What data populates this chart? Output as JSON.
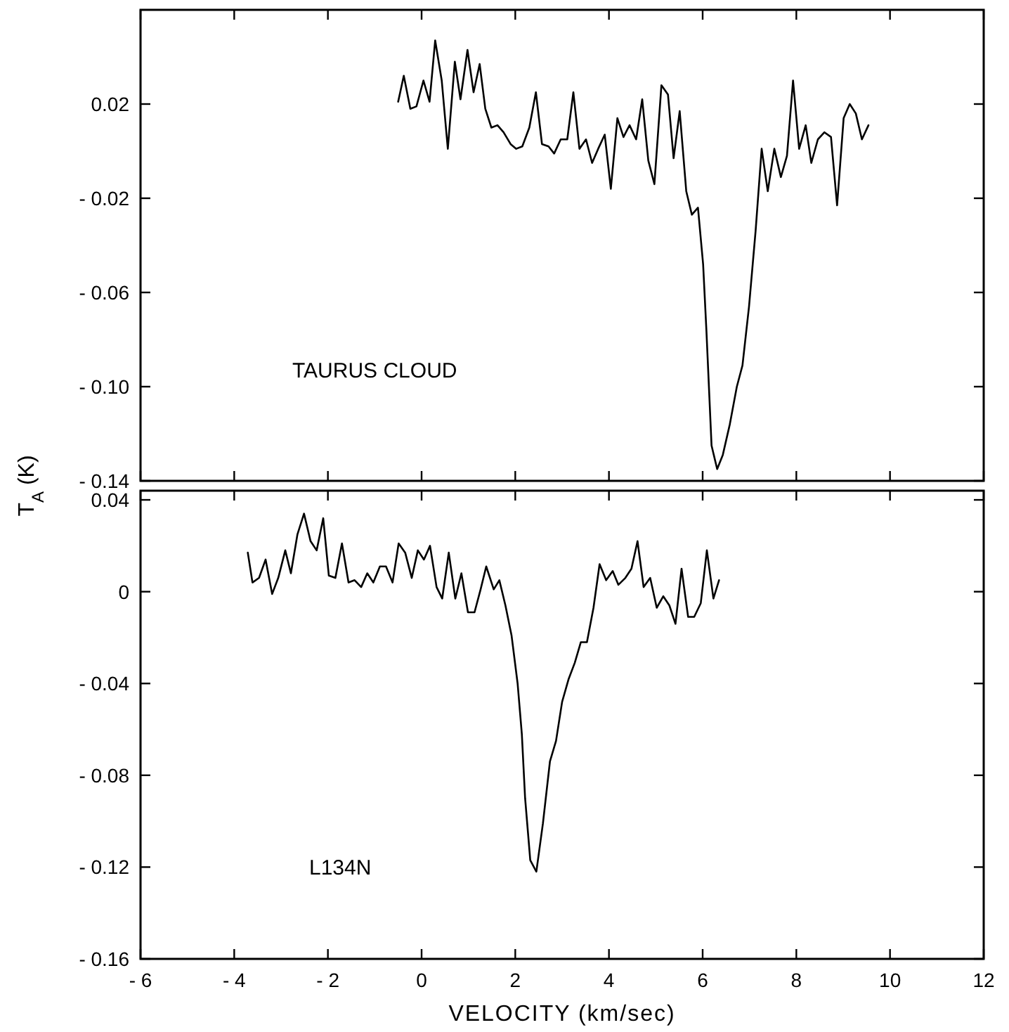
{
  "chart_data": [
    {
      "type": "line",
      "ylabel": "T$_{A}$ (K)",
      "annotations": [
        "TAURUS CLOUD"
      ],
      "tick_labels": "y",
      "grid": false,
      "marker": "none",
      "line_style": "solid",
      "color": "#000000",
      "xlim": [
        -6,
        12
      ],
      "xticks": [
        {
          "value": -6,
          "label": null
        },
        {
          "value": -4,
          "label": null
        },
        {
          "value": -2,
          "label": null
        },
        {
          "value": 0,
          "label": null
        },
        {
          "value": 2,
          "label": null
        },
        {
          "value": 4,
          "label": null
        },
        {
          "value": 6,
          "label": null
        },
        {
          "value": 8,
          "label": null
        },
        {
          "value": 10,
          "label": null
        },
        {
          "value": 12,
          "label": null
        }
      ],
      "ylim": [
        -0.14,
        0.06
      ],
      "yticks": [
        {
          "value": 0.02,
          "label": "0.02"
        },
        {
          "value": -0.02,
          "label": "- 0.02"
        },
        {
          "value": -0.06,
          "label": "- 0.06"
        },
        {
          "value": -0.1,
          "label": "- 0.10"
        },
        {
          "value": -0.14,
          "label": "- 0.14"
        }
      ],
      "x": [
        -0.5,
        -0.38,
        -0.24,
        -0.11,
        0.04,
        0.17,
        0.29,
        0.43,
        0.56,
        0.71,
        0.83,
        0.98,
        1.11,
        1.24,
        1.36,
        1.49,
        1.62,
        1.75,
        1.9,
        2.02,
        2.15,
        2.3,
        2.44,
        2.57,
        2.71,
        2.83,
        2.97,
        3.11,
        3.24,
        3.37,
        3.51,
        3.64,
        3.77,
        3.91,
        4.04,
        4.18,
        4.31,
        4.44,
        4.58,
        4.71,
        4.84,
        4.97,
        5.12,
        5.26,
        5.38,
        5.51,
        5.65,
        5.77,
        5.9,
        6.01,
        6.08,
        6.19,
        6.31,
        6.43,
        6.58,
        6.73,
        6.85,
        6.99,
        7.13,
        7.26,
        7.39,
        7.53,
        7.67,
        7.8,
        7.93,
        8.06,
        8.2,
        8.32,
        8.46,
        8.6,
        8.74,
        8.87,
        9.01,
        9.14,
        9.27,
        9.4,
        9.54
      ],
      "values": [
        0.021,
        0.032,
        0.018,
        0.019,
        0.03,
        0.021,
        0.047,
        0.03,
        0.001,
        0.038,
        0.022,
        0.043,
        0.025,
        0.037,
        0.018,
        0.01,
        0.011,
        0.008,
        0.003,
        0.001,
        0.002,
        0.01,
        0.025,
        0.003,
        0.002,
        -0.001,
        0.005,
        0.005,
        0.025,
        0.001,
        0.005,
        -0.005,
        0.001,
        0.007,
        -0.016,
        0.014,
        0.006,
        0.011,
        0.005,
        0.022,
        -0.004,
        -0.014,
        0.028,
        0.024,
        -0.003,
        0.017,
        -0.017,
        -0.027,
        -0.024,
        -0.048,
        -0.076,
        -0.125,
        -0.135,
        -0.129,
        -0.116,
        -0.1,
        -0.091,
        -0.066,
        -0.034,
        0.001,
        -0.017,
        0.001,
        -0.011,
        -0.002,
        0.03,
        0.001,
        0.011,
        -0.005,
        0.005,
        0.008,
        0.006,
        -0.023,
        0.014,
        0.02,
        0.016,
        0.005,
        0.011
      ]
    },
    {
      "type": "line",
      "xlabel": "VELOCITY (km/sec)",
      "annotations": [
        "L134N"
      ],
      "grid": false,
      "marker": "none",
      "line_style": "solid",
      "color": "#000000",
      "xlim": [
        -6,
        12
      ],
      "xticks": [
        {
          "value": -6,
          "label": "- 6"
        },
        {
          "value": -4,
          "label": "- 4"
        },
        {
          "value": -2,
          "label": "- 2"
        },
        0,
        2,
        4,
        6,
        8,
        10,
        12
      ],
      "ylim": [
        -0.16,
        0.044
      ],
      "yticks": [
        {
          "value": 0.04,
          "label": "0.04"
        },
        0,
        {
          "value": -0.04,
          "label": "- 0.04"
        },
        {
          "value": -0.08,
          "label": "- 0.08"
        },
        {
          "value": -0.12,
          "label": "- 0.12"
        },
        {
          "value": -0.16,
          "label": "- 0.16"
        }
      ],
      "x": [
        -3.71,
        -3.61,
        -3.47,
        -3.33,
        -3.19,
        -3.06,
        -2.91,
        -2.79,
        -2.65,
        -2.51,
        -2.37,
        -2.24,
        -2.1,
        -1.98,
        -1.84,
        -1.7,
        -1.56,
        -1.43,
        -1.29,
        -1.16,
        -1.03,
        -0.89,
        -0.76,
        -0.62,
        -0.49,
        -0.35,
        -0.21,
        -0.08,
        0.05,
        0.18,
        0.32,
        0.44,
        0.58,
        0.72,
        0.85,
        0.99,
        1.13,
        1.26,
        1.38,
        1.54,
        1.66,
        1.79,
        1.92,
        2.05,
        2.14,
        2.21,
        2.32,
        2.45,
        2.59,
        2.74,
        2.87,
        3.0,
        3.14,
        3.27,
        3.4,
        3.53,
        3.67,
        3.8,
        3.94,
        4.08,
        4.2,
        4.35,
        4.48,
        4.61,
        4.74,
        4.88,
        5.02,
        5.16,
        5.29,
        5.42,
        5.55,
        5.69,
        5.82,
        5.96,
        6.09,
        6.23,
        6.35
      ],
      "values": [
        0.017,
        0.004,
        0.006,
        0.014,
        -0.001,
        0.006,
        0.018,
        0.008,
        0.025,
        0.034,
        0.022,
        0.018,
        0.032,
        0.007,
        0.006,
        0.021,
        0.004,
        0.005,
        0.002,
        0.008,
        0.004,
        0.011,
        0.011,
        0.004,
        0.021,
        0.017,
        0.006,
        0.018,
        0.014,
        0.02,
        0.002,
        -0.003,
        0.017,
        -0.003,
        0.008,
        -0.009,
        -0.009,
        0.001,
        0.011,
        0.001,
        0.005,
        -0.006,
        -0.019,
        -0.04,
        -0.062,
        -0.09,
        -0.117,
        -0.122,
        -0.101,
        -0.074,
        -0.065,
        -0.048,
        -0.038,
        -0.031,
        -0.022,
        -0.022,
        -0.007,
        0.012,
        0.005,
        0.009,
        0.003,
        0.006,
        0.01,
        0.022,
        0.002,
        0.006,
        -0.007,
        -0.002,
        -0.006,
        -0.014,
        0.01,
        -0.011,
        -0.011,
        -0.005,
        0.018,
        -0.003,
        0.005
      ]
    }
  ]
}
